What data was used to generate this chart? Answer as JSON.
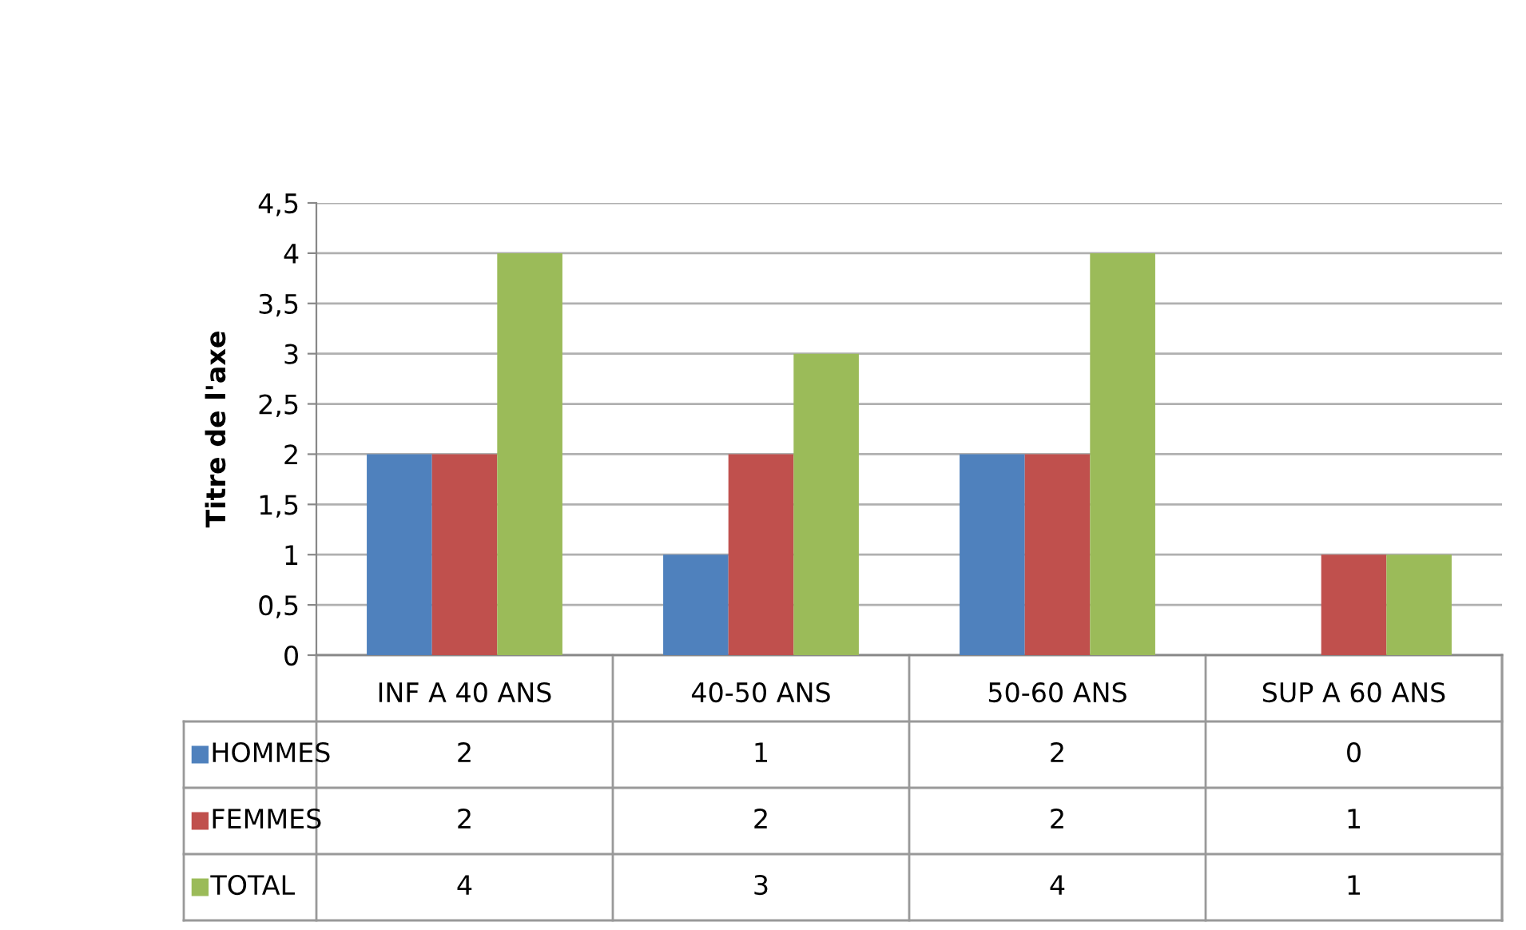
{
  "chart_data": {
    "type": "bar",
    "ylabel": "Titre de l'axe",
    "categories": [
      "INF A 40 ANS",
      "40-50 ANS",
      "50-60 ANS",
      "SUP A 60 ANS"
    ],
    "series": [
      {
        "name": "HOMMES",
        "color": "#4f81bd",
        "values": [
          2,
          1,
          2,
          0
        ]
      },
      {
        "name": "FEMMES",
        "color": "#c0504d",
        "values": [
          2,
          2,
          2,
          1
        ]
      },
      {
        "name": "TOTAL",
        "color": "#9bbb59",
        "values": [
          4,
          3,
          4,
          1
        ]
      }
    ],
    "ylim": [
      0,
      4.5
    ],
    "yticks": [
      0,
      {
        "value": 0.5,
        "label": "0,5"
      },
      1,
      {
        "value": 1.5,
        "label": "1,5"
      },
      2,
      {
        "value": 2.5,
        "label": "2,5"
      },
      3,
      {
        "value": 3.5,
        "label": "3,5"
      },
      4,
      {
        "value": 4.5,
        "label": "4,5"
      }
    ],
    "grid": "y",
    "legend": "bottom left",
    "data_labels": true
  }
}
